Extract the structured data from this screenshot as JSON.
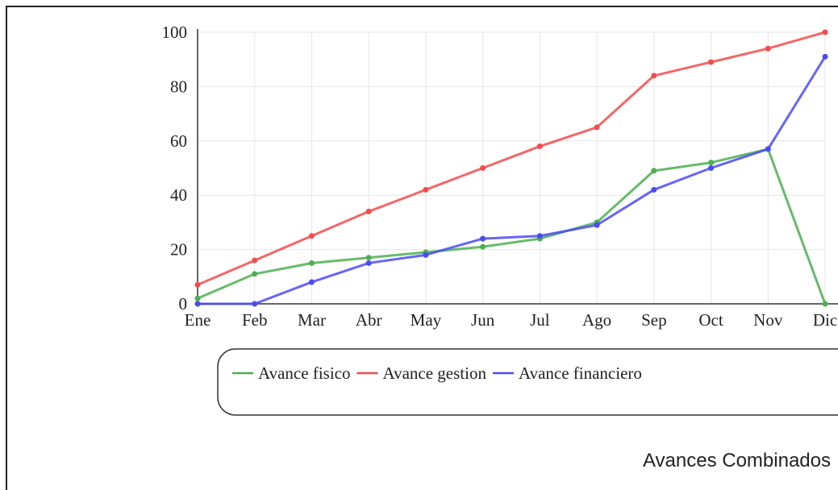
{
  "chart_data": {
    "type": "line",
    "title": "Avances Combinados",
    "categories": [
      "Ene",
      "Feb",
      "Mar",
      "Abr",
      "May",
      "Jun",
      "Jul",
      "Ago",
      "Sep",
      "Oct",
      "Nov",
      "Dic"
    ],
    "series": [
      {
        "name": "Avance fisico",
        "color": "#4caf50",
        "values": [
          2,
          11,
          15,
          17,
          19,
          21,
          24,
          30,
          49,
          52,
          57,
          0
        ]
      },
      {
        "name": "Avance gestion",
        "color": "#f44b4b",
        "values": [
          7,
          16,
          25,
          34,
          42,
          50,
          58,
          65,
          84,
          89,
          94,
          100
        ]
      },
      {
        "name": "Avance financiero",
        "color": "#4b4bf4",
        "values": [
          0,
          0,
          8,
          15,
          18,
          24,
          25,
          29,
          42,
          50,
          57,
          91
        ]
      }
    ],
    "ylim": [
      0,
      100
    ],
    "yticks": [
      0,
      20,
      40,
      60,
      80,
      100
    ],
    "grid": true
  }
}
